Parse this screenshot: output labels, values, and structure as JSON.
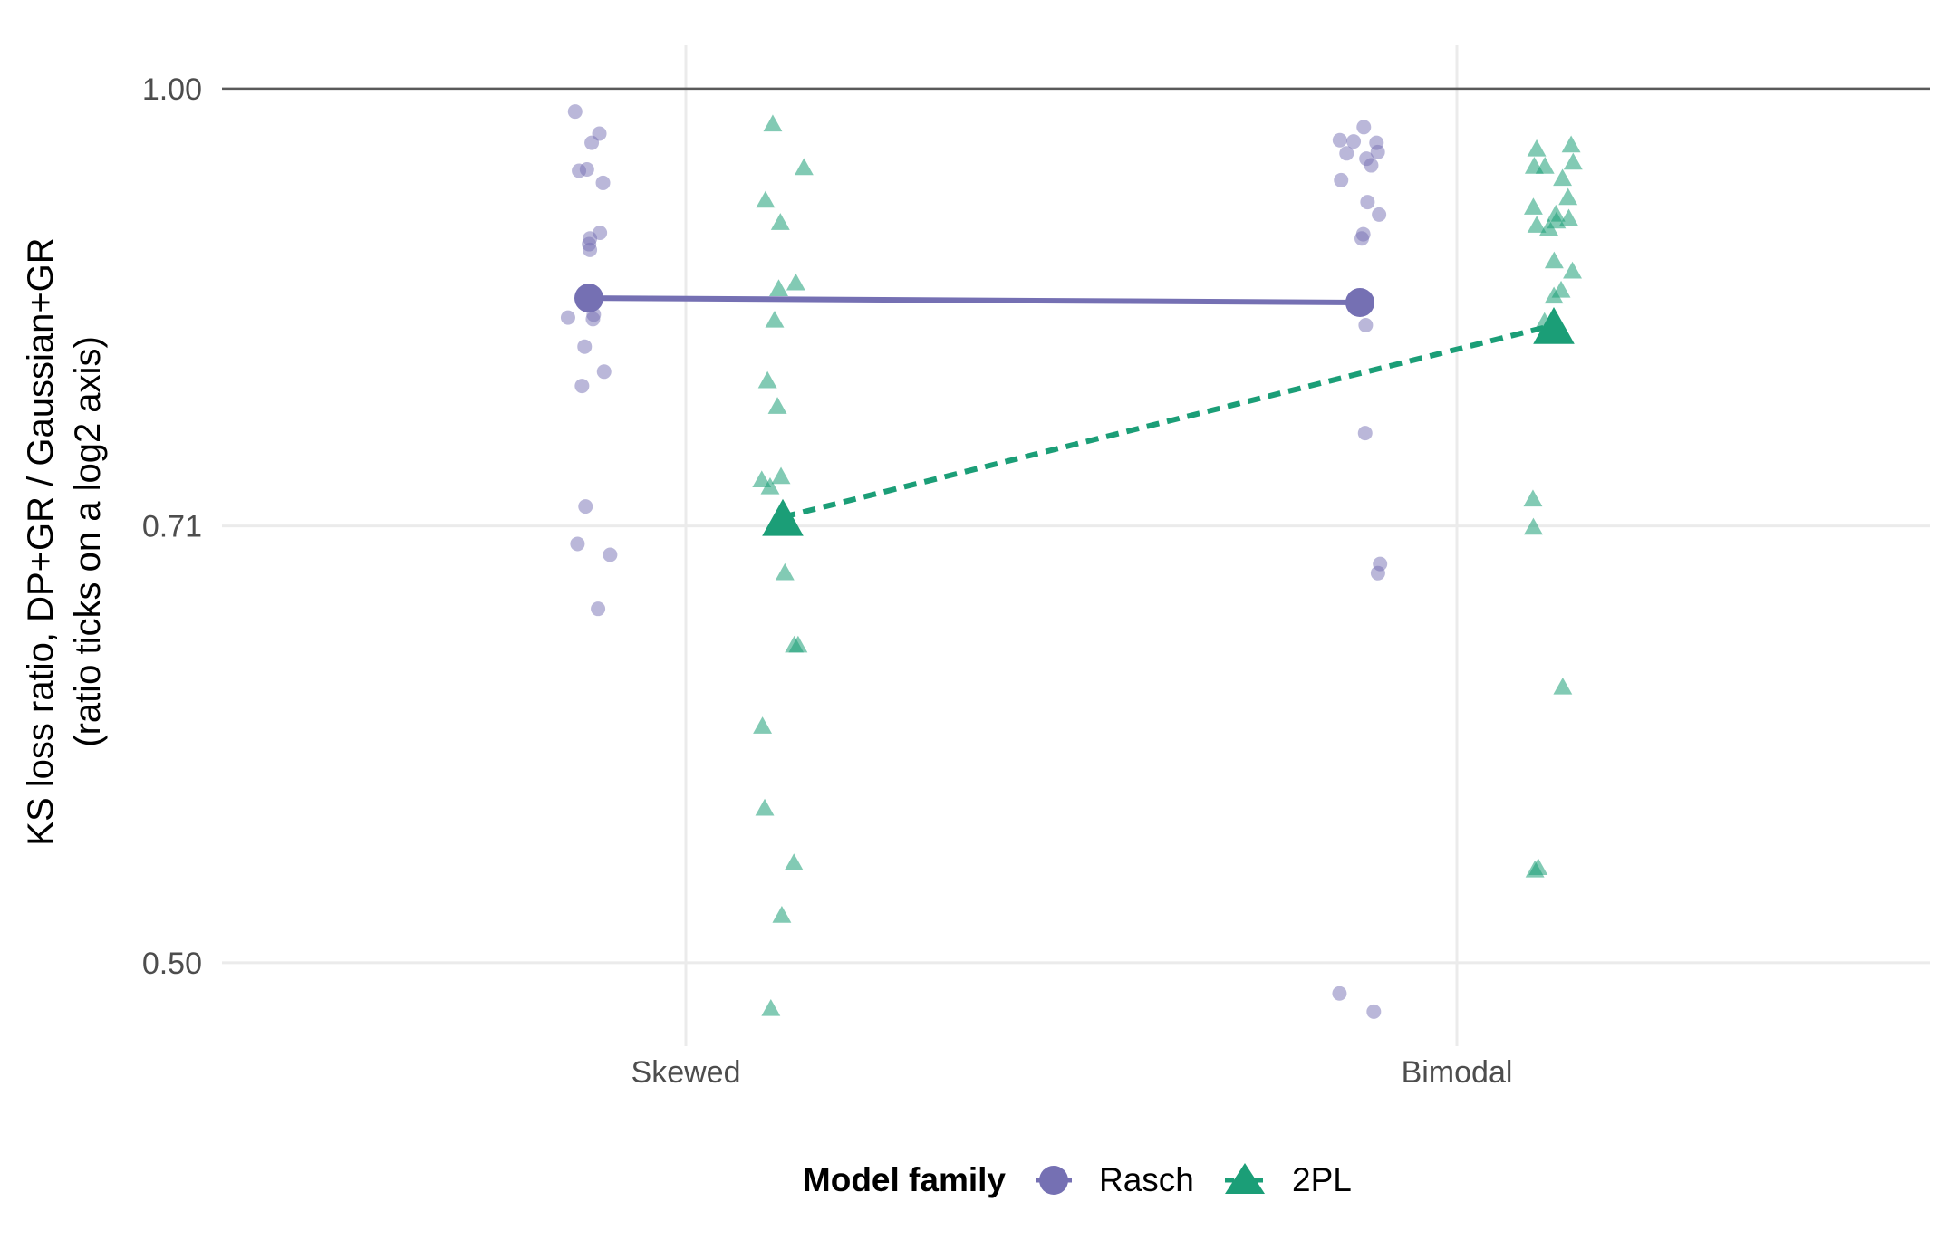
{
  "chart_data": {
    "type": "scatter",
    "title": "",
    "xlabel": "",
    "ylabel": "KS loss ratio, DP+GR / Gaussian+GR",
    "ylabel_sub": "(ratio ticks on a log2 axis)",
    "y_scale": "log2",
    "ylim": [
      0.468,
      1.035
    ],
    "categories": [
      "Skewed",
      "Bimodal"
    ],
    "y_ticks": [
      {
        "value": 1.0,
        "label": "1.00"
      },
      {
        "value": 0.707,
        "label": "0.71"
      },
      {
        "value": 0.5,
        "label": "0.50"
      }
    ],
    "reference_line": 1.0,
    "grid": true,
    "legend": {
      "title": "Model family",
      "position": "bottom",
      "entries": [
        "Rasch",
        "2PL"
      ]
    },
    "series": [
      {
        "name": "Rasch",
        "color": "#7570b3",
        "shape": "circle",
        "line_style": "solid",
        "means": [
          0.847,
          0.844
        ],
        "points": [
          [
            0.982,
            0.965,
            0.958,
            0.938,
            0.937,
            0.928,
            0.892,
            0.884,
            0.888,
            0.88,
            0.834,
            0.833,
            0.836,
            0.815,
            0.799,
            0.79,
            0.718,
            0.697,
            0.691,
            0.662
          ],
          [
            0.97,
            0.96,
            0.959,
            0.958,
            0.95,
            0.951,
            0.946,
            0.941,
            0.93,
            0.914,
            0.905,
            0.891,
            0.888,
            0.829,
            0.761,
            0.686,
            0.681,
            0.488,
            0.481
          ]
        ]
      },
      {
        "name": "2PL",
        "color": "#1b9e77",
        "shape": "triangle",
        "line_style": "dashed",
        "means": [
          0.712,
          0.829
        ],
        "points": [
          [
            0.972,
            0.939,
            0.915,
            0.899,
            0.857,
            0.853,
            0.832,
            0.793,
            0.777,
            0.735,
            0.733,
            0.729,
            0.681,
            0.643,
            0.643,
            0.603,
            0.565,
            0.541,
            0.519,
            0.482
          ],
          [
            0.956,
            0.953,
            0.943,
            0.94,
            0.94,
            0.931,
            0.917,
            0.91,
            0.905,
            0.902,
            0.9,
            0.897,
            0.895,
            0.872,
            0.865,
            0.852,
            0.848,
            0.831,
            0.722,
            0.706,
            0.622,
            0.539,
            0.538
          ]
        ]
      }
    ]
  }
}
